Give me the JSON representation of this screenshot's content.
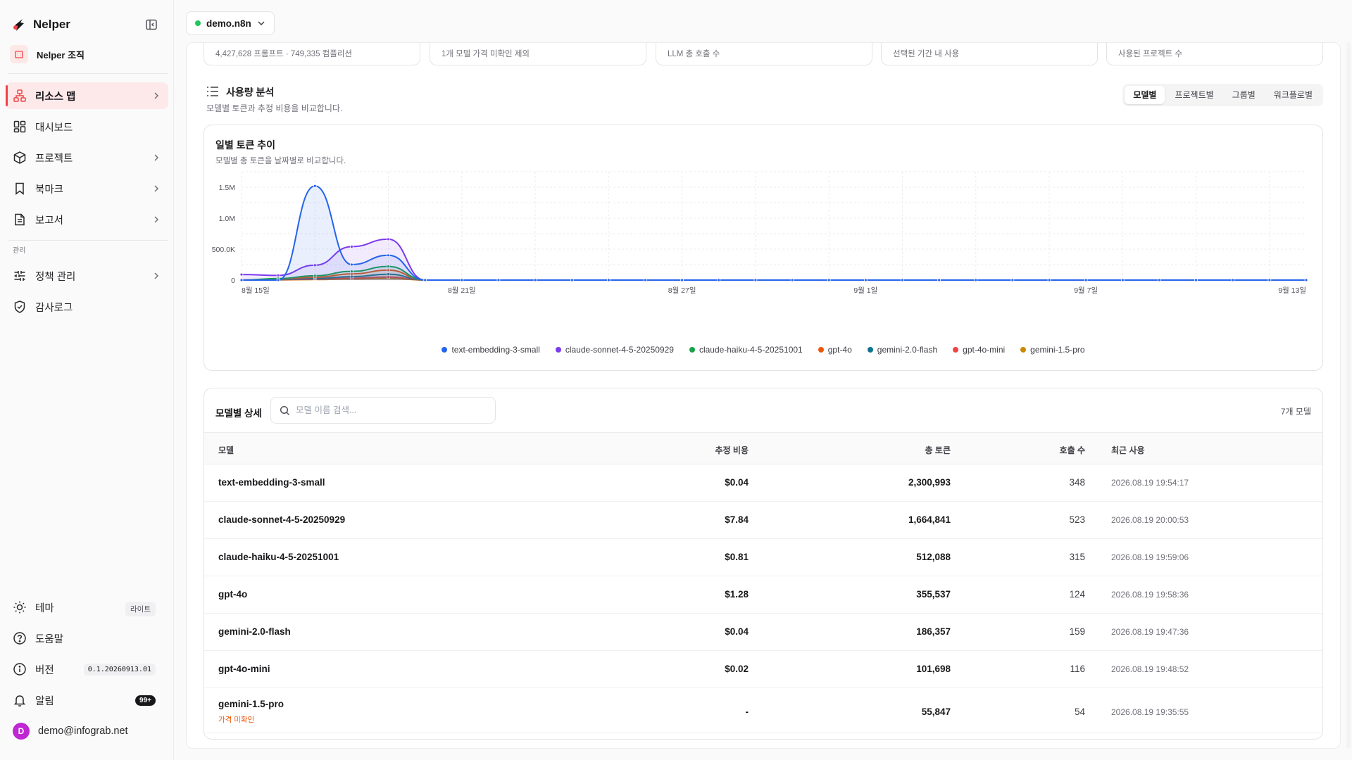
{
  "sidebar": {
    "brand": "Nelper",
    "org": "Nelper 조직",
    "items": [
      {
        "label": "리소스 맵",
        "icon": "sitemap-icon",
        "chevron": true,
        "active": true
      },
      {
        "label": "대시보드",
        "icon": "dashboard-icon",
        "chevron": false
      },
      {
        "label": "프로젝트",
        "icon": "box-icon",
        "chevron": true
      },
      {
        "label": "북마크",
        "icon": "bookmark-icon",
        "chevron": true
      },
      {
        "label": "보고서",
        "icon": "report-icon",
        "chevron": true
      }
    ],
    "section_label": "관리",
    "admin_items": [
      {
        "label": "정책 관리",
        "icon": "sliders-icon",
        "chevron": true
      },
      {
        "label": "감사로그",
        "icon": "shield-icon",
        "chevron": false
      }
    ],
    "bottom": {
      "theme_label": "테마",
      "theme_value": "라이트",
      "help_label": "도움말",
      "version_label": "버전",
      "version_value": "0.1.20260913.01",
      "alert_label": "알림",
      "alert_count": "99+",
      "user_initial": "D",
      "user_email": "demo@infograb.net"
    }
  },
  "topbar": {
    "env_name": "demo.n8n",
    "env_color": "#22c55e"
  },
  "stat_cards": [
    "4,427,628 프롬프트 · 749,335 컴플리션",
    "1개 모델 가격 미확인 제외",
    "LLM 총 호출 수",
    "선택된 기간 내 사용",
    "사용된 프로젝트 수"
  ],
  "usage": {
    "title": "사용량 분석",
    "subtitle": "모델별 토큰과 추정 비용을 비교합니다.",
    "tabs": [
      "모델별",
      "프로젝트별",
      "그룹별",
      "워크플로별"
    ],
    "active_tab": 0
  },
  "chart_data": {
    "type": "area",
    "title": "일별 토큰 추이",
    "subtitle": "모델별 총 토큰을 날짜별로 비교합니다.",
    "x_ticks": [
      "8월 15일",
      "8월 21일",
      "8월 27일",
      "9월 1일",
      "9월 7일",
      "9월 13일"
    ],
    "y_ticks": [
      "0",
      "500.0K",
      "1.0M",
      "1.5M"
    ],
    "ylim": [
      0,
      1750000
    ],
    "x_dates": [
      "08-15",
      "08-16",
      "08-17",
      "08-18",
      "08-19",
      "08-20",
      "08-21",
      "08-22",
      "08-23",
      "08-24",
      "08-25",
      "08-26",
      "08-27",
      "08-28",
      "08-29",
      "08-30",
      "08-31",
      "09-01",
      "09-02",
      "09-03",
      "09-04",
      "09-05",
      "09-06",
      "09-07",
      "09-08",
      "09-09",
      "09-10",
      "09-11",
      "09-12",
      "09-13"
    ],
    "series": [
      {
        "name": "text-embedding-3-small",
        "color": "#2563eb",
        "values": [
          0,
          0,
          1520000,
          250000,
          400000,
          0,
          0,
          0,
          0,
          0,
          0,
          0,
          0,
          0,
          0,
          0,
          0,
          0,
          0,
          0,
          0,
          0,
          0,
          0,
          0,
          0,
          0,
          0,
          0,
          0
        ]
      },
      {
        "name": "claude-sonnet-4-5-20250929",
        "color": "#7c3aed",
        "values": [
          90000,
          75000,
          240000,
          540000,
          660000,
          0,
          0,
          0,
          0,
          0,
          0,
          0,
          0,
          0,
          0,
          0,
          0,
          0,
          0,
          0,
          0,
          0,
          0,
          0,
          0,
          0,
          0,
          0,
          0,
          0
        ]
      },
      {
        "name": "claude-haiku-4-5-20251001",
        "color": "#16a34a",
        "values": [
          0,
          25000,
          70000,
          140000,
          220000,
          0,
          0,
          0,
          0,
          0,
          0,
          0,
          0,
          0,
          0,
          0,
          0,
          0,
          0,
          0,
          0,
          0,
          0,
          0,
          0,
          0,
          0,
          0,
          0,
          0
        ]
      },
      {
        "name": "gpt-4o",
        "color": "#ea580c",
        "values": [
          0,
          15000,
          45000,
          100000,
          160000,
          0,
          0,
          0,
          0,
          0,
          0,
          0,
          0,
          0,
          0,
          0,
          0,
          0,
          0,
          0,
          0,
          0,
          0,
          0,
          0,
          0,
          0,
          0,
          0,
          0
        ]
      },
      {
        "name": "gemini-2.0-flash",
        "color": "#0e7490",
        "values": [
          0,
          8000,
          25000,
          55000,
          95000,
          0,
          0,
          0,
          0,
          0,
          0,
          0,
          0,
          0,
          0,
          0,
          0,
          0,
          0,
          0,
          0,
          0,
          0,
          0,
          0,
          0,
          0,
          0,
          0,
          0
        ]
      },
      {
        "name": "gpt-4o-mini",
        "color": "#ef4444",
        "values": [
          0,
          5000,
          14000,
          30000,
          50000,
          0,
          0,
          0,
          0,
          0,
          0,
          0,
          0,
          0,
          0,
          0,
          0,
          0,
          0,
          0,
          0,
          0,
          0,
          0,
          0,
          0,
          0,
          0,
          0,
          0
        ]
      },
      {
        "name": "gemini-1.5-pro",
        "color": "#ca8a04",
        "values": [
          0,
          3000,
          8000,
          18000,
          28000,
          0,
          0,
          0,
          0,
          0,
          0,
          0,
          0,
          0,
          0,
          0,
          0,
          0,
          0,
          0,
          0,
          0,
          0,
          0,
          0,
          0,
          0,
          0,
          0,
          0
        ]
      }
    ],
    "grid": true,
    "legend": "bottom"
  },
  "table": {
    "heading": "모델별 상세",
    "search_placeholder": "모델 이름 검색...",
    "count": "7개 모델",
    "columns": [
      "모델",
      "추정 비용",
      "총 토큰",
      "호출 수",
      "최근 사용"
    ],
    "rows": [
      {
        "model": "text-embedding-3-small",
        "cost": "$0.04",
        "tokens": "2,300,993",
        "calls": "348",
        "last": "2026.08.19 19:54:17"
      },
      {
        "model": "claude-sonnet-4-5-20250929",
        "cost": "$7.84",
        "tokens": "1,664,841",
        "calls": "523",
        "last": "2026.08.19 20:00:53"
      },
      {
        "model": "claude-haiku-4-5-20251001",
        "cost": "$0.81",
        "tokens": "512,088",
        "calls": "315",
        "last": "2026.08.19 19:59:06"
      },
      {
        "model": "gpt-4o",
        "cost": "$1.28",
        "tokens": "355,537",
        "calls": "124",
        "last": "2026.08.19 19:58:36"
      },
      {
        "model": "gemini-2.0-flash",
        "cost": "$0.04",
        "tokens": "186,357",
        "calls": "159",
        "last": "2026.08.19 19:47:36"
      },
      {
        "model": "gpt-4o-mini",
        "cost": "$0.02",
        "tokens": "101,698",
        "calls": "116",
        "last": "2026.08.19 19:48:52"
      },
      {
        "model": "gemini-1.5-pro",
        "cost": "-",
        "tokens": "55,847",
        "calls": "54",
        "last": "2026.08.19 19:35:55",
        "note": "가격 미확인"
      }
    ]
  }
}
